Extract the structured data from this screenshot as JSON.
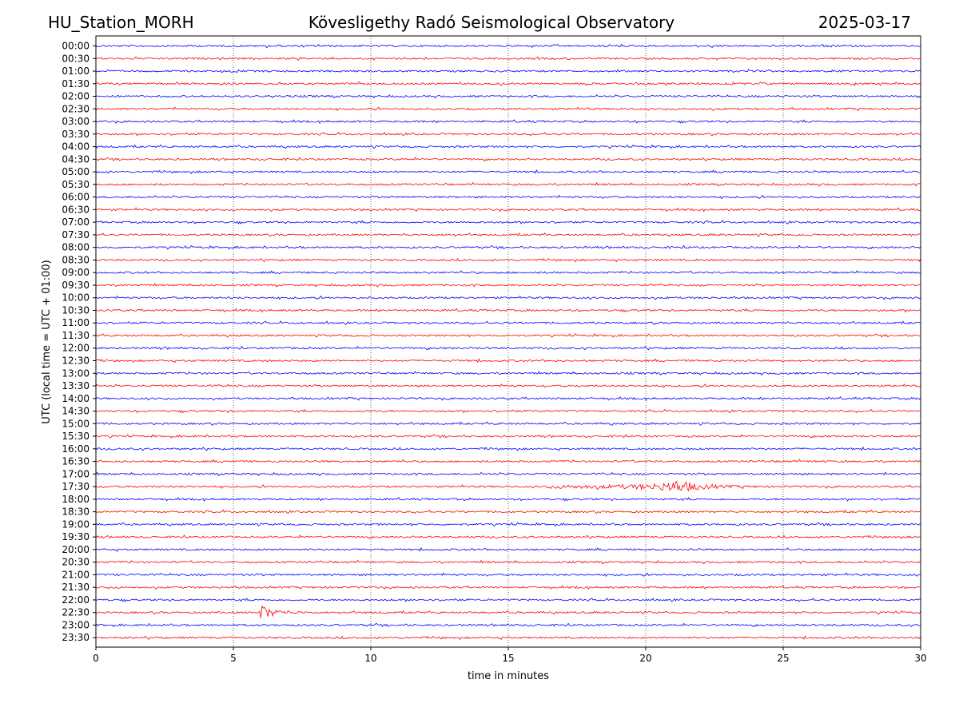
{
  "chart_data": {
    "type": "line",
    "title_left": "HU_Station_MORH",
    "title_center": "Kövesligethy Radó Seismological Observatory",
    "title_right": "2025-03-17",
    "xlabel": "time in minutes",
    "ylabel": "UTC (local time = UTC + 01:00)",
    "xlim": [
      0,
      30
    ],
    "x_ticks": [
      "0",
      "5",
      "10",
      "15",
      "20",
      "25",
      "30"
    ],
    "x_tick_values": [
      0,
      5,
      10,
      15,
      20,
      25,
      30
    ],
    "grid": "vertical dotted at major x ticks",
    "series_colors": [
      "#0000ff",
      "#ff0000"
    ],
    "rows": [
      "00:00",
      "00:30",
      "01:00",
      "01:30",
      "02:00",
      "02:30",
      "03:00",
      "03:30",
      "04:00",
      "04:30",
      "05:00",
      "05:30",
      "06:00",
      "06:30",
      "07:00",
      "07:30",
      "08:00",
      "08:30",
      "09:00",
      "09:30",
      "10:00",
      "10:30",
      "11:00",
      "11:30",
      "12:00",
      "12:30",
      "13:00",
      "13:30",
      "14:00",
      "14:30",
      "15:00",
      "15:30",
      "16:00",
      "16:30",
      "17:00",
      "17:30",
      "18:00",
      "18:30",
      "19:00",
      "19:30",
      "20:00",
      "20:30",
      "21:00",
      "21:30",
      "22:00",
      "22:30",
      "23:00",
      "23:30"
    ],
    "events": [
      {
        "row": "17:30",
        "start_min": 16.3,
        "peak_min": 21.2,
        "end_min": 24.0
      },
      {
        "row": "22:30",
        "start_min": 5.9,
        "peak_min": 6.0,
        "end_min": 7.5
      }
    ]
  }
}
